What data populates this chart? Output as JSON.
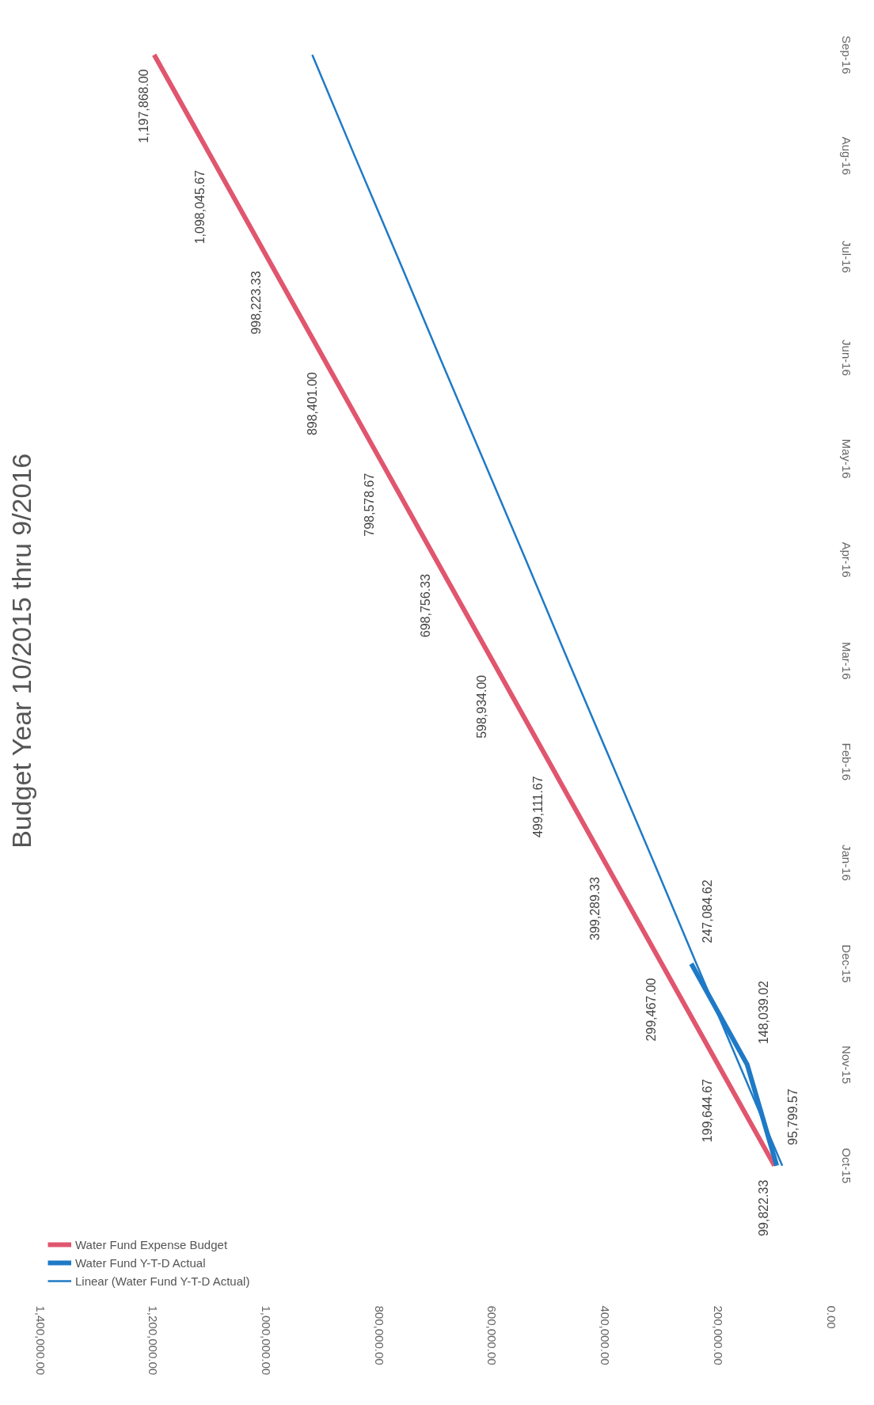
{
  "chart_data": {
    "type": "line",
    "title": "Budget Year 10/2015 thru 9/2016",
    "categories": [
      "Sep-16",
      "Aug-16",
      "Jul-16",
      "Jun-16",
      "May-16",
      "Apr-16",
      "Mar-16",
      "Feb-16",
      "Jan-16",
      "Dec-15",
      "Nov-15",
      "Oct-15"
    ],
    "orientation": "horizontal",
    "xlim": [
      1400000,
      0
    ],
    "xticks": [
      {
        "value": 0,
        "label": "0.00"
      },
      {
        "value": 200000,
        "label": "200,000.00"
      },
      {
        "value": 400000,
        "label": "400,000.00"
      },
      {
        "value": 600000,
        "label": "600,000.00"
      },
      {
        "value": 800000,
        "label": "800,000.00"
      },
      {
        "value": 1000000,
        "label": "1,000,000.00"
      },
      {
        "value": 1200000,
        "label": "1,200,000.00"
      },
      {
        "value": 1400000,
        "label": "1,400,000.00"
      }
    ],
    "series": [
      {
        "name": "Water Fund Expense Budget",
        "color": "#e0566e",
        "values": [
          1197868.0,
          1098045.67,
          998223.33,
          898401.0,
          798578.67,
          698756.33,
          598934.0,
          499111.67,
          399289.33,
          299467.0,
          199644.67,
          99822.33
        ],
        "value_labels": [
          "1,197,868.00",
          "1,098,045.67",
          "998,223.33",
          "898,401.00",
          "798,578.67",
          "698,756.33",
          "598,934.00",
          "499,111.67",
          "399,289.33",
          "299,467.00",
          "199,644.67",
          "99,822.33"
        ]
      },
      {
        "name": "Water Fund Y-T-D Actual",
        "color": "#1f7ac6",
        "values": [
          null,
          null,
          null,
          null,
          null,
          null,
          null,
          null,
          null,
          247084.62,
          148039.02,
          95799.57
        ],
        "value_labels": [
          null,
          null,
          null,
          null,
          null,
          null,
          null,
          null,
          null,
          "247,084.62",
          "148,039.02",
          "95,799.57"
        ]
      },
      {
        "name": "Linear (Water Fund Y-T-D Actual)",
        "color": "#1f7ac6",
        "values": [
          918000,
          843000,
          767000,
          692000,
          616000,
          540000,
          465000,
          389000,
          313000,
          238000,
          162000,
          86000
        ]
      }
    ],
    "legend": "bottom left",
    "grid": false,
    "marker": "none",
    "line_style": "solid"
  }
}
